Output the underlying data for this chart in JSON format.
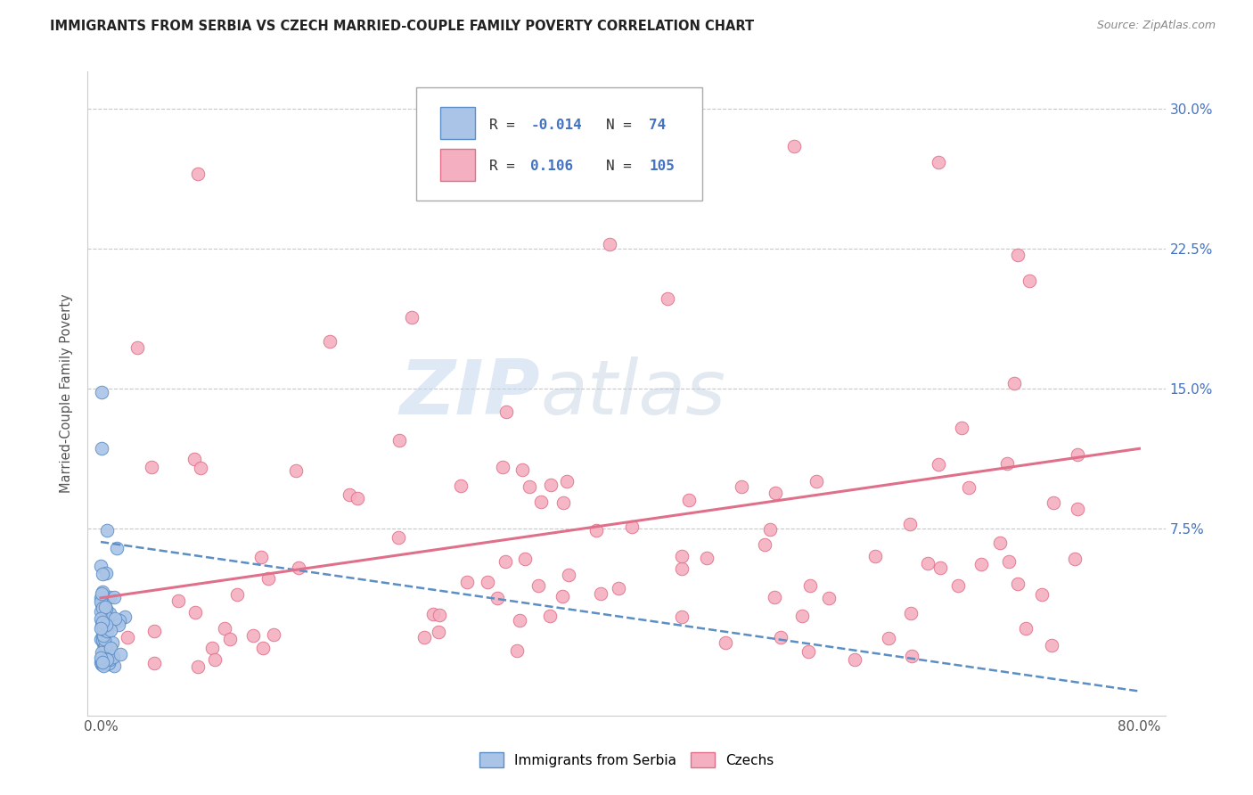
{
  "title": "IMMIGRANTS FROM SERBIA VS CZECH MARRIED-COUPLE FAMILY POVERTY CORRELATION CHART",
  "source": "Source: ZipAtlas.com",
  "ylabel": "Married-Couple Family Poverty",
  "xlim": [
    -0.01,
    0.82
  ],
  "ylim": [
    -0.025,
    0.32
  ],
  "xtick_vals": [
    0.0,
    0.8
  ],
  "xticklabels": [
    "0.0%",
    "80.0%"
  ],
  "ytick_vals": [
    0.075,
    0.15,
    0.225,
    0.3
  ],
  "yticklabels": [
    "7.5%",
    "15.0%",
    "22.5%",
    "30.0%"
  ],
  "grid_color": "#c8c8c8",
  "background_color": "#ffffff",
  "serbia_color": "#aac4e8",
  "serbia_edge_color": "#5b8ec4",
  "czech_color": "#f4afc0",
  "czech_edge_color": "#e0708a",
  "serbia_R": -0.014,
  "serbia_N": 74,
  "czech_R": 0.106,
  "czech_N": 105,
  "legend_label_serbia": "Immigrants from Serbia",
  "legend_label_czech": "Czechs",
  "watermark_zip": "ZIP",
  "watermark_atlas": "atlas",
  "serbia_line_color": "#5b8ec4",
  "czech_line_color": "#e0708a",
  "serbia_trend_y0": 0.068,
  "serbia_trend_y1": -0.012,
  "czech_trend_y0": 0.038,
  "czech_trend_y1": 0.118
}
